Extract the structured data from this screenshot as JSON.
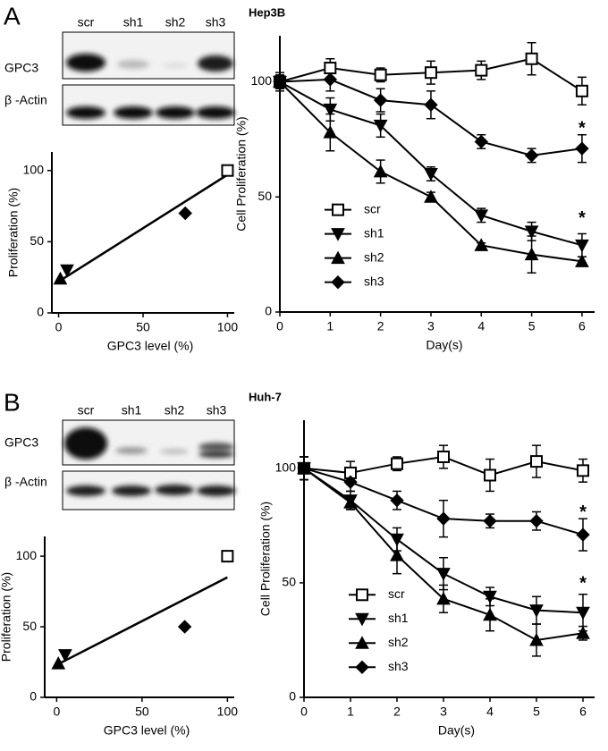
{
  "panels": [
    {
      "letter": "A",
      "lanes": [
        "scr",
        "sh1",
        "sh2",
        "sh3"
      ],
      "rows": [
        "GPC3",
        "β -Actin"
      ]
    },
    {
      "letter": "B",
      "lanes": [
        "scr",
        "sh1",
        "sh2",
        "sh3"
      ],
      "rows": [
        "GPC3",
        "β -Actin"
      ]
    }
  ],
  "chart_data": [
    {
      "type": "scatter",
      "x_label": "GPC3 level (%)",
      "y_label": "Proliferation (%)",
      "xlim": [
        -4,
        104
      ],
      "ylim": [
        0,
        113
      ],
      "xticks": [
        0,
        50,
        100
      ],
      "yticks": [
        0,
        50,
        100
      ],
      "series": [
        {
          "marker": "square",
          "color": "#000000",
          "x": [
            100
          ],
          "values": [
            100
          ]
        },
        {
          "marker": "triangle-down",
          "color": "#000000",
          "x": [
            5
          ],
          "values": [
            30
          ]
        },
        {
          "marker": "triangle-up",
          "color": "#000000",
          "x": [
            1
          ],
          "values": [
            24
          ]
        },
        {
          "marker": "diamond",
          "color": "#000000",
          "x": [
            75
          ],
          "values": [
            70
          ]
        }
      ],
      "fit": {
        "color": "#000000",
        "x": [
          0,
          100
        ],
        "values": [
          22,
          97
        ]
      }
    },
    {
      "type": "line",
      "title": "Hep3B",
      "x_label": "Day(s)",
      "y_label": "Cell Proliferation (%)",
      "x": [
        0,
        1,
        2,
        3,
        4,
        5,
        6
      ],
      "xlim": [
        0,
        6.25
      ],
      "ylim": [
        0,
        120
      ],
      "xticks": [
        0,
        1,
        2,
        3,
        4,
        5,
        6
      ],
      "yticks": [
        0,
        50,
        100
      ],
      "legend": "left",
      "series": [
        {
          "name": "scr",
          "marker": "square",
          "color": "#000000",
          "values": [
            100,
            106,
            103,
            104,
            105,
            110,
            96
          ],
          "errors": [
            4,
            4,
            3,
            5,
            4,
            7,
            6
          ]
        },
        {
          "name": "sh1",
          "marker": "triangle-down",
          "color": "#000000",
          "values": [
            100,
            88,
            81,
            60,
            42,
            35,
            29
          ],
          "errors": [
            3,
            5,
            5,
            3,
            3,
            4,
            5
          ]
        },
        {
          "name": "sh2",
          "marker": "triangle-up",
          "color": "#000000",
          "values": [
            100,
            78,
            61,
            50,
            29,
            25,
            22
          ],
          "errors": [
            3,
            8,
            5,
            2,
            1,
            8,
            2
          ]
        },
        {
          "name": "sh3",
          "marker": "diamond",
          "color": "#000000",
          "values": [
            100,
            101,
            92,
            90,
            74,
            68,
            71
          ],
          "errors": [
            3,
            5,
            5,
            6,
            3,
            3,
            6
          ]
        }
      ],
      "annotations": [
        {
          "text": "*",
          "x": 6,
          "y": 81
        },
        {
          "text": "*",
          "x": 6,
          "y": 42
        }
      ]
    },
    {
      "type": "scatter",
      "x_label": "GPC3 level (%)",
      "y_label": "Proliferation (%)",
      "xlim": [
        -7,
        104
      ],
      "ylim": [
        0,
        114
      ],
      "xticks": [
        0,
        50,
        100
      ],
      "yticks": [
        0,
        50,
        100
      ],
      "series": [
        {
          "marker": "square",
          "color": "#000000",
          "x": [
            100
          ],
          "values": [
            100
          ]
        },
        {
          "marker": "triangle-down",
          "color": "#000000",
          "x": [
            5
          ],
          "values": [
            30
          ]
        },
        {
          "marker": "triangle-up",
          "color": "#000000",
          "x": [
            1
          ],
          "values": [
            24
          ]
        },
        {
          "marker": "diamond",
          "color": "#000000",
          "x": [
            75
          ],
          "values": [
            50
          ]
        }
      ],
      "fit": {
        "color": "#000000",
        "x": [
          0,
          100
        ],
        "values": [
          23,
          85
        ]
      }
    },
    {
      "type": "line",
      "title": "Huh-7",
      "x_label": "Day(s)",
      "y_label": "Cell Proliferation (%)",
      "x": [
        0,
        1,
        2,
        3,
        4,
        5,
        6
      ],
      "xlim": [
        0,
        6.25
      ],
      "ylim": [
        0,
        121
      ],
      "xticks": [
        0,
        1,
        2,
        3,
        4,
        5,
        6
      ],
      "yticks": [
        0,
        50,
        100
      ],
      "legend": "left",
      "series": [
        {
          "name": "scr",
          "marker": "square",
          "color": "#000000",
          "values": [
            100,
            98,
            102,
            105,
            97,
            103,
            99
          ],
          "errors": [
            5,
            5,
            3,
            5,
            7,
            7,
            5
          ]
        },
        {
          "name": "sh1",
          "marker": "triangle-down",
          "color": "#000000",
          "values": [
            100,
            86,
            69,
            54,
            44,
            38,
            37
          ],
          "errors": [
            5,
            4,
            5,
            7,
            4,
            6,
            8
          ]
        },
        {
          "name": "sh2",
          "marker": "triangle-up",
          "color": "#000000",
          "values": [
            100,
            85,
            62,
            43,
            36,
            25,
            28
          ],
          "errors": [
            5,
            3,
            8,
            6,
            7,
            7,
            3
          ]
        },
        {
          "name": "sh3",
          "marker": "diamond",
          "color": "#000000",
          "values": [
            100,
            94,
            86,
            78,
            77,
            77,
            71
          ],
          "errors": [
            5,
            4,
            4,
            8,
            3,
            4,
            7
          ]
        }
      ],
      "annotations": [
        {
          "text": "*",
          "x": 6,
          "y": 82
        },
        {
          "text": "*",
          "x": 6,
          "y": 51
        }
      ]
    }
  ]
}
